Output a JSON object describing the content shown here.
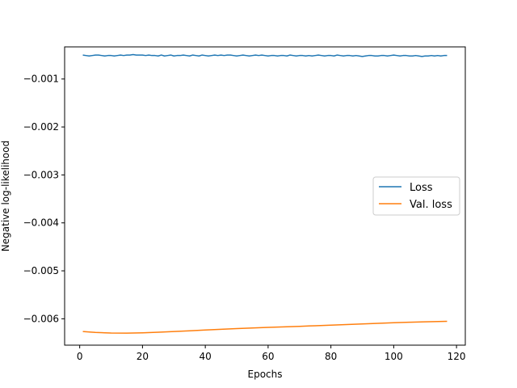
{
  "chart_data": {
    "type": "line",
    "title": "",
    "xlabel": "Epochs",
    "ylabel": "Negative log-likelihood",
    "xlim": [
      -4.8,
      122.8
    ],
    "ylim": [
      -0.00655,
      -0.00033
    ],
    "xticks": [
      0,
      20,
      40,
      60,
      80,
      100,
      120
    ],
    "xtick_labels": [
      "0",
      "20",
      "40",
      "60",
      "80",
      "100",
      "120"
    ],
    "yticks": [
      -0.006,
      -0.005,
      -0.004,
      -0.003,
      -0.002,
      -0.001
    ],
    "ytick_labels": [
      "−0.006",
      "−0.005",
      "−0.004",
      "−0.003",
      "−0.002",
      "−0.001"
    ],
    "grid": false,
    "legend": "center-right",
    "series": [
      {
        "name": "Loss",
        "color": "#1f77b4",
        "x": [
          1,
          2,
          3,
          4,
          5,
          6,
          7,
          8,
          9,
          10,
          11,
          12,
          13,
          14,
          15,
          16,
          17,
          18,
          19,
          20,
          21,
          22,
          23,
          24,
          25,
          26,
          27,
          28,
          29,
          30,
          31,
          32,
          33,
          34,
          35,
          36,
          37,
          38,
          39,
          40,
          41,
          42,
          43,
          44,
          45,
          46,
          47,
          48,
          49,
          50,
          51,
          52,
          53,
          54,
          55,
          56,
          57,
          58,
          59,
          60,
          61,
          62,
          63,
          64,
          65,
          66,
          67,
          68,
          69,
          70,
          71,
          72,
          73,
          74,
          75,
          76,
          77,
          78,
          79,
          80,
          81,
          82,
          83,
          84,
          85,
          86,
          87,
          88,
          89,
          90,
          91,
          92,
          93,
          94,
          95,
          96,
          97,
          98,
          99,
          100,
          101,
          102,
          103,
          104,
          105,
          106,
          107,
          108,
          109,
          110,
          111,
          112,
          113,
          114,
          115,
          116,
          117
        ],
        "y": [
          -0.0005,
          -0.00051,
          -0.00052,
          -0.00051,
          -0.0005,
          -0.0005,
          -0.00051,
          -0.00052,
          -0.00051,
          -0.00051,
          -0.00052,
          -0.00051,
          -0.0005,
          -0.00051,
          -0.0005,
          -0.0005,
          -0.00049,
          -0.0005,
          -0.0005,
          -0.0005,
          -0.00051,
          -0.0005,
          -0.00051,
          -0.00051,
          -0.00052,
          -0.0005,
          -0.00052,
          -0.00051,
          -0.0005,
          -0.00052,
          -0.00051,
          -0.00051,
          -0.0005,
          -0.00051,
          -0.00052,
          -0.0005,
          -0.00051,
          -0.00052,
          -0.0005,
          -0.00051,
          -0.00052,
          -0.00051,
          -0.0005,
          -0.00051,
          -0.0005,
          -0.00051,
          -0.0005,
          -0.0005,
          -0.00051,
          -0.00052,
          -0.00051,
          -0.0005,
          -0.00051,
          -0.00052,
          -0.00051,
          -0.0005,
          -0.00051,
          -0.0005,
          -0.00051,
          -0.00052,
          -0.00051,
          -0.00051,
          -0.00052,
          -0.00051,
          -0.00051,
          -0.00052,
          -0.0005,
          -0.00051,
          -0.00052,
          -0.00051,
          -0.00051,
          -0.00052,
          -0.00051,
          -0.00052,
          -0.00051,
          -0.0005,
          -0.00051,
          -0.00052,
          -0.00051,
          -0.00051,
          -0.00052,
          -0.0005,
          -0.00051,
          -0.00052,
          -0.00051,
          -0.00051,
          -0.00052,
          -0.00051,
          -0.00052,
          -0.00053,
          -0.00052,
          -0.00051,
          -0.00051,
          -0.00052,
          -0.00052,
          -0.00051,
          -0.00051,
          -0.00052,
          -0.00051,
          -0.0005,
          -0.00051,
          -0.00052,
          -0.00051,
          -0.00051,
          -0.00052,
          -0.00052,
          -0.00051,
          -0.00052,
          -0.00053,
          -0.00052,
          -0.00052,
          -0.00051,
          -0.00052,
          -0.00051,
          -0.00052,
          -0.00051,
          -0.00051
        ]
      },
      {
        "name": "Val. loss",
        "color": "#ff7f0e",
        "x": [
          1,
          5,
          10,
          15,
          20,
          25,
          30,
          35,
          40,
          45,
          50,
          55,
          60,
          65,
          70,
          75,
          80,
          85,
          90,
          95,
          100,
          105,
          110,
          117
        ],
        "y": [
          -0.006265,
          -0.006285,
          -0.006298,
          -0.0063,
          -0.006293,
          -0.00628,
          -0.006265,
          -0.00625,
          -0.006235,
          -0.00622,
          -0.006205,
          -0.006192,
          -0.00618,
          -0.006168,
          -0.006157,
          -0.006145,
          -0.006133,
          -0.006121,
          -0.006108,
          -0.006095,
          -0.006083,
          -0.006072,
          -0.006063,
          -0.006052
        ]
      }
    ]
  }
}
